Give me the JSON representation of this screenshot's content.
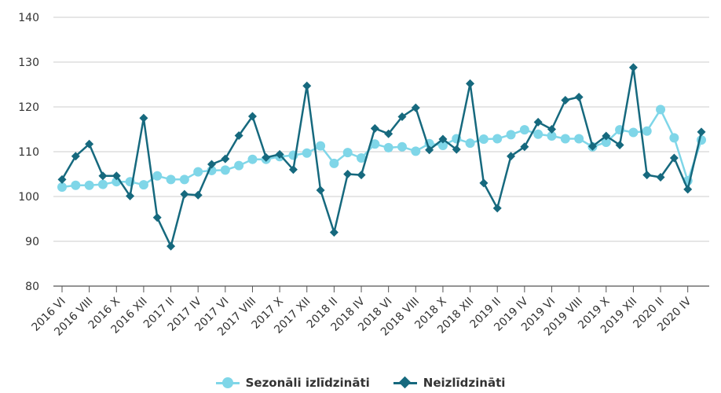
{
  "chart_data": {
    "type": "line",
    "title": "",
    "xlabel": "",
    "ylabel": "",
    "ylim": [
      80,
      140
    ],
    "yticks": [
      "80",
      "90",
      "100",
      "110",
      "120",
      "130",
      "140"
    ],
    "grid": true,
    "legend_position": "bottom-center",
    "categories": [
      "2016 VI",
      "2016 VII",
      "2016 VIII",
      "2016 IX",
      "2016 X",
      "2016 XI",
      "2016 XII",
      "2017 I",
      "2017 II",
      "2017 III",
      "2017 IV",
      "2017 V",
      "2017 VI",
      "2017 VII",
      "2017 VIII",
      "2017 IX",
      "2017 X",
      "2017 XI",
      "2017 XII",
      "2018 I",
      "2018 II",
      "2018 III",
      "2018 IV",
      "2018 V",
      "2018 VI",
      "2018 VII",
      "2018 VIII",
      "2018 IX",
      "2018 X",
      "2018 XI",
      "2018 XII",
      "2019 I",
      "2019 II",
      "2019 III",
      "2019 IV",
      "2019 V",
      "2019 VI",
      "2019 VII",
      "2019 VIII",
      "2019 IX",
      "2019 X",
      "2019 XI",
      "2019 XII",
      "2020 I",
      "2020 II",
      "2020 III",
      "2020 IV",
      "2020 V"
    ],
    "xtick_labels": [
      "2016 VI",
      "2016 VIII",
      "2016 X",
      "2016 XII",
      "2017 II",
      "2017 IV",
      "2017 VI",
      "2017 VIII",
      "2017 X",
      "2017 XII",
      "2018 II",
      "2018 IV",
      "2018 VI",
      "2018 VIII",
      "2018 X",
      "2018 XII",
      "2019 II",
      "2019 IV",
      "2019 VI",
      "2019 VIII",
      "2019 X",
      "2019 XII",
      "2020 II",
      "2020 IV"
    ],
    "series": [
      {
        "name": "Sezonāli izlīdzināti",
        "color": "#7fd6e8",
        "marker": "circle",
        "values": [
          102.1,
          102.5,
          102.5,
          102.7,
          103.3,
          103.3,
          102.6,
          104.6,
          103.8,
          103.8,
          105.5,
          105.8,
          105.9,
          106.9,
          108.3,
          108.3,
          108.9,
          109.2,
          109.7,
          111.3,
          107.4,
          109.8,
          108.6,
          111.7,
          110.9,
          111.1,
          110.1,
          111.8,
          111.4,
          112.9,
          111.9,
          112.8,
          112.9,
          113.8,
          114.9,
          113.9,
          113.5,
          112.9,
          112.9,
          111.1,
          112.1,
          114.9,
          114.3,
          114.6,
          119.4,
          113.1,
          103.5,
          112.6
        ]
      },
      {
        "name": "Neizlīdzināti",
        "color": "#16697e",
        "marker": "diamond",
        "values": [
          103.8,
          109.0,
          111.7,
          104.6,
          104.6,
          100.1,
          117.5,
          95.3,
          88.9,
          100.5,
          100.3,
          107.2,
          108.4,
          113.6,
          117.9,
          108.7,
          109.4,
          106.0,
          124.7,
          101.4,
          92.0,
          105.0,
          104.8,
          115.2,
          114.0,
          117.8,
          119.8,
          110.4,
          112.8,
          110.5,
          125.2,
          103.0,
          97.4,
          109.0,
          111.1,
          116.6,
          115.0,
          121.5,
          122.2,
          111.2,
          113.5,
          111.5,
          128.8,
          104.8,
          104.3,
          108.6,
          101.6,
          114.4
        ]
      }
    ]
  }
}
